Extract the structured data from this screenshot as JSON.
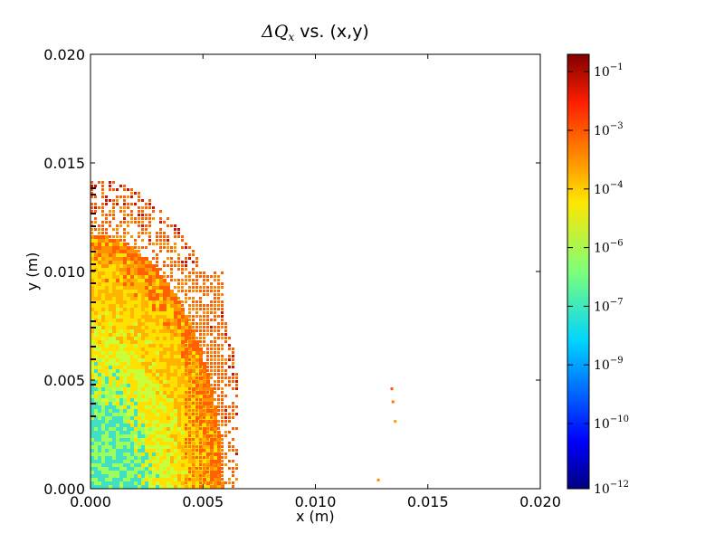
{
  "chart_data": {
    "type": "heatmap",
    "title": {
      "math_symbol": "ΔQ",
      "math_subscript": "x",
      "suffix": " vs. (x,y)"
    },
    "xlabel": "x (m)",
    "ylabel": "y (m)",
    "xlim": [
      0.0,
      0.02
    ],
    "ylim": [
      0.0,
      0.02
    ],
    "x_ticks": [
      0.0,
      0.005,
      0.01,
      0.015,
      0.02
    ],
    "x_tick_labels": [
      "0.000",
      "0.005",
      "0.010",
      "0.015",
      "0.020"
    ],
    "y_ticks": [
      0.0,
      0.005,
      0.01,
      0.015,
      0.02
    ],
    "y_tick_labels": [
      "0.000",
      "0.005",
      "0.010",
      "0.015",
      "0.020"
    ],
    "grid": false,
    "colorbar": {
      "scale": "log",
      "colormap": "jet",
      "labels": [
        {
          "base": "10",
          "exp": "−1"
        },
        {
          "base": "10",
          "exp": "−3"
        },
        {
          "base": "10",
          "exp": "−4"
        },
        {
          "base": "10",
          "exp": "−6"
        },
        {
          "base": "10",
          "exp": "−7"
        },
        {
          "base": "10",
          "exp": "−9"
        },
        {
          "base": "10",
          "exp": "−10"
        },
        {
          "base": "10",
          "exp": "−12"
        }
      ],
      "label_fractions": [
        0.04,
        0.175,
        0.31,
        0.445,
        0.58,
        0.715,
        0.85,
        1.0
      ]
    },
    "isolated_points": [
      {
        "x": 0.0134,
        "y": 0.0046,
        "color": "#ff5a00"
      },
      {
        "x": 0.01345,
        "y": 0.004,
        "color": "#ff7800"
      },
      {
        "x": 0.01355,
        "y": 0.0031,
        "color": "#ff9a00"
      },
      {
        "x": 0.0128,
        "y": 0.0004,
        "color": "#ff8c00"
      }
    ],
    "region_description_colors": {
      "core_low": "#40e0c0",
      "mid": "#ffe000",
      "outer": "#ff6000",
      "edge": "#d01000"
    }
  }
}
